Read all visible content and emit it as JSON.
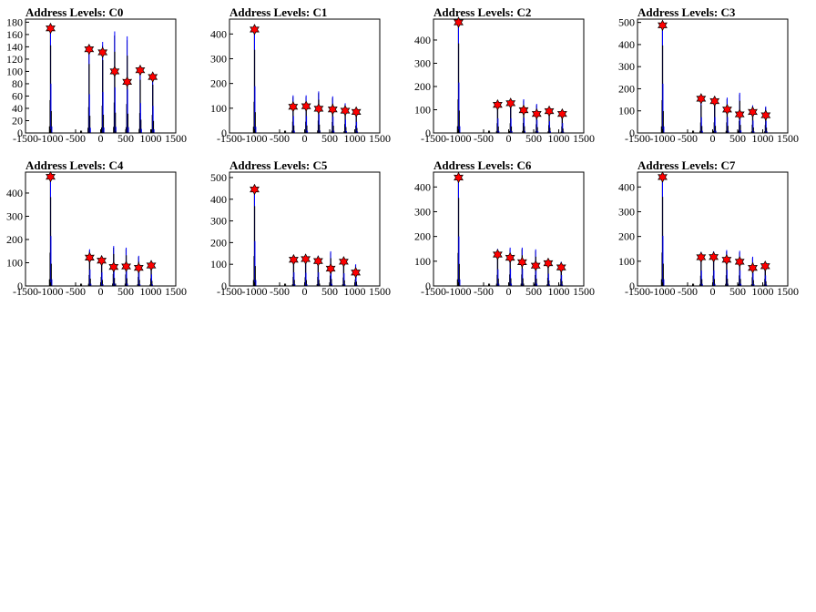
{
  "chart_data": [
    {
      "type": "histogram",
      "title": "Address Levels: C0",
      "xlim": [
        -1500,
        1500
      ],
      "xticks": [
        "-1500",
        "-1000",
        "-500",
        "0",
        "500",
        "1000",
        "1500"
      ],
      "ylim": [
        0,
        185
      ],
      "yticks": [
        "0",
        "20",
        "40",
        "60",
        "80",
        "100",
        "120",
        "140",
        "160",
        "180"
      ],
      "peaks_x": [
        -1000,
        -230,
        40,
        280,
        530,
        790,
        1040
      ],
      "peak_heights": [
        178,
        140,
        148,
        165,
        157,
        108,
        98
      ],
      "marker_values": [
        170,
        136,
        131,
        100,
        83,
        102,
        91
      ]
    },
    {
      "type": "histogram",
      "title": "Address Levels: C1",
      "xlim": [
        -1500,
        1500
      ],
      "xticks": [
        "-1500",
        "-1000",
        "-500",
        "0",
        "500",
        "1000",
        "1500"
      ],
      "ylim": [
        0,
        460
      ],
      "yticks": [
        "0",
        "100",
        "200",
        "300",
        "400"
      ],
      "peaks_x": [
        -1000,
        -230,
        30,
        280,
        560,
        810,
        1030
      ],
      "peak_heights": [
        420,
        152,
        152,
        168,
        148,
        120,
        100
      ],
      "marker_values": [
        418,
        106,
        108,
        98,
        95,
        90,
        85
      ]
    },
    {
      "type": "histogram",
      "title": "Address Levels: C2",
      "xlim": [
        -1500,
        1500
      ],
      "xticks": [
        "-1500",
        "-1000",
        "-500",
        "0",
        "500",
        "1000",
        "1500"
      ],
      "ylim": [
        0,
        490
      ],
      "yticks": [
        "0",
        "100",
        "200",
        "300",
        "400"
      ],
      "peaks_x": [
        -1000,
        -220,
        40,
        300,
        560,
        810,
        1070
      ],
      "peak_heights": [
        482,
        140,
        140,
        145,
        125,
        112,
        95
      ],
      "marker_values": [
        476,
        121,
        128,
        98,
        82,
        94,
        82
      ]
    },
    {
      "type": "histogram",
      "title": "Address Levels: C3",
      "xlim": [
        -1500,
        1500
      ],
      "xticks": [
        "-1500",
        "-1000",
        "-500",
        "0",
        "500",
        "1000",
        "1500"
      ],
      "ylim": [
        0,
        515
      ],
      "yticks": [
        "0",
        "100",
        "200",
        "300",
        "400",
        "500"
      ],
      "peaks_x": [
        -1000,
        -230,
        40,
        290,
        540,
        800,
        1060
      ],
      "peak_heights": [
        495,
        158,
        160,
        160,
        182,
        125,
        120
      ],
      "marker_values": [
        487,
        155,
        144,
        106,
        84,
        95,
        80
      ]
    },
    {
      "type": "histogram",
      "title": "Address Levels: C4",
      "xlim": [
        -1500,
        1500
      ],
      "xticks": [
        "-1500",
        "-1000",
        "-500",
        "0",
        "500",
        "1000",
        "1500"
      ],
      "ylim": [
        0,
        490
      ],
      "yticks": [
        "0",
        "100",
        "200",
        "300",
        "400"
      ],
      "peaks_x": [
        -1000,
        -220,
        20,
        260,
        510,
        760,
        1010
      ],
      "peak_heights": [
        478,
        158,
        130,
        172,
        165,
        130,
        110
      ],
      "marker_values": [
        470,
        122,
        109,
        82,
        84,
        78,
        88
      ]
    },
    {
      "type": "histogram",
      "title": "Address Levels: C5",
      "xlim": [
        -1500,
        1500
      ],
      "xticks": [
        "-1500",
        "-1000",
        "-500",
        "0",
        "500",
        "1000",
        "1500"
      ],
      "ylim": [
        0,
        525
      ],
      "yticks": [
        "0",
        "100",
        "200",
        "300",
        "400",
        "500"
      ],
      "peaks_x": [
        -1000,
        -220,
        20,
        270,
        520,
        780,
        1020
      ],
      "peak_heights": [
        460,
        140,
        135,
        140,
        160,
        130,
        100
      ],
      "marker_values": [
        445,
        121,
        124,
        115,
        80,
        112,
        62
      ]
    },
    {
      "type": "histogram",
      "title": "Address Levels: C6",
      "xlim": [
        -1500,
        1500
      ],
      "xticks": [
        "-1500",
        "-1000",
        "-500",
        "0",
        "500",
        "1000",
        "1500"
      ],
      "ylim": [
        0,
        460
      ],
      "yticks": [
        "0",
        "100",
        "200",
        "300",
        "400"
      ],
      "peaks_x": [
        -1000,
        -220,
        30,
        270,
        540,
        790,
        1050
      ],
      "peak_heights": [
        445,
        150,
        155,
        155,
        148,
        110,
        98
      ],
      "marker_values": [
        438,
        127,
        114,
        96,
        82,
        92,
        75
      ]
    },
    {
      "type": "histogram",
      "title": "Address Levels: C7",
      "xlim": [
        -1500,
        1500
      ],
      "xticks": [
        "-1500",
        "-1000",
        "-500",
        "0",
        "500",
        "1000",
        "1500"
      ],
      "ylim": [
        0,
        460
      ],
      "yticks": [
        "0",
        "100",
        "200",
        "300",
        "400"
      ],
      "peaks_x": [
        -1000,
        -230,
        20,
        280,
        540,
        800,
        1050
      ],
      "peak_heights": [
        450,
        138,
        140,
        145,
        142,
        118,
        95
      ],
      "marker_values": [
        440,
        116,
        117,
        106,
        98,
        73,
        80
      ]
    }
  ],
  "colors": {
    "histogram_black": "#000000",
    "histogram_blue": "#0000ff",
    "marker": "#ff0000"
  }
}
